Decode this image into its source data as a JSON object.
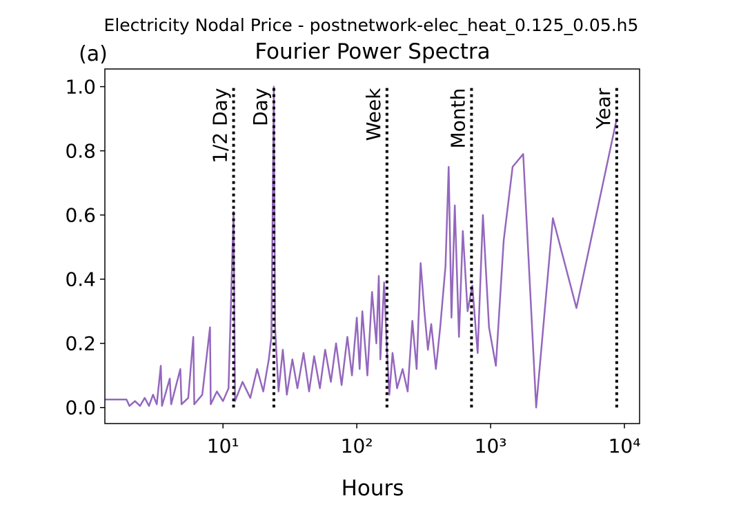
{
  "chart_data": {
    "type": "line",
    "suptitle": "Electricity Nodal Price - postnetwork-elec_heat_0.125_0.05.h5",
    "panel_label": "(a)",
    "title": "Fourier Power Spectra",
    "x_label": "Hours",
    "x_scale": "log",
    "x": [
      1.31,
      1.9,
      2.0,
      2.2,
      2.4,
      2.6,
      2.8,
      3.0,
      3.2,
      3.43,
      3.5,
      4.0,
      4.1,
      4.8,
      4.9,
      5.5,
      6.0,
      6.1,
      7.0,
      8.0,
      8.1,
      9,
      10,
      11,
      12,
      12.3,
      14,
      16,
      18,
      20,
      22,
      23,
      24,
      24.5,
      26,
      28,
      30,
      33,
      36,
      40,
      44,
      48,
      53,
      58,
      64,
      70,
      77,
      85,
      92,
      100,
      105,
      110,
      120,
      130,
      140,
      146,
      150,
      160,
      168,
      175,
      185,
      200,
      220,
      240,
      260,
      280,
      300,
      320,
      340,
      360,
      390,
      420,
      460,
      486,
      510,
      540,
      580,
      620,
      673,
      730,
      800,
      876,
      973,
      1095,
      1252,
      1460,
      1752,
      2190,
      2920,
      4380,
      8760
    ],
    "series": [
      {
        "color": "#9467bd",
        "values": [
          0.025,
          0.025,
          0.005,
          0.02,
          0.005,
          0.03,
          0.005,
          0.04,
          0.01,
          0.13,
          0.005,
          0.09,
          0.01,
          0.12,
          0.01,
          0.03,
          0.22,
          0.01,
          0.04,
          0.25,
          0.01,
          0.05,
          0.02,
          0.06,
          0.61,
          0.02,
          0.08,
          0.03,
          0.12,
          0.05,
          0.15,
          0.22,
          1.0,
          0.25,
          0.05,
          0.18,
          0.04,
          0.15,
          0.06,
          0.17,
          0.05,
          0.16,
          0.06,
          0.18,
          0.08,
          0.2,
          0.07,
          0.22,
          0.1,
          0.28,
          0.12,
          0.3,
          0.1,
          0.36,
          0.2,
          0.41,
          0.15,
          0.39,
          0.18,
          0.04,
          0.17,
          0.06,
          0.12,
          0.05,
          0.27,
          0.12,
          0.45,
          0.3,
          0.18,
          0.26,
          0.12,
          0.25,
          0.44,
          0.75,
          0.28,
          0.63,
          0.22,
          0.55,
          0.3,
          0.38,
          0.17,
          0.6,
          0.25,
          0.13,
          0.52,
          0.75,
          0.79,
          0.0,
          0.59,
          0.31,
          0.9
        ]
      }
    ],
    "vlines": [
      {
        "x": 12,
        "label": "1/2 Day"
      },
      {
        "x": 24,
        "label": "Day"
      },
      {
        "x": 168,
        "label": "Week"
      },
      {
        "x": 720,
        "label": "Month"
      },
      {
        "x": 8760,
        "label": "Year"
      }
    ],
    "xlim": [
      1.31,
      12980
    ],
    "xticks": [
      {
        "value": 10,
        "label": "10¹"
      },
      {
        "value": 100,
        "label": "10²"
      },
      {
        "value": 1000,
        "label": "10³"
      },
      {
        "value": 10000,
        "label": "10⁴"
      }
    ],
    "ylim": [
      -0.05,
      1.055
    ],
    "yticks": [
      {
        "value": 0,
        "label": "0.0"
      },
      0.2,
      0.4,
      0.6,
      0.8,
      {
        "value": 1,
        "label": "1.0"
      }
    ]
  }
}
